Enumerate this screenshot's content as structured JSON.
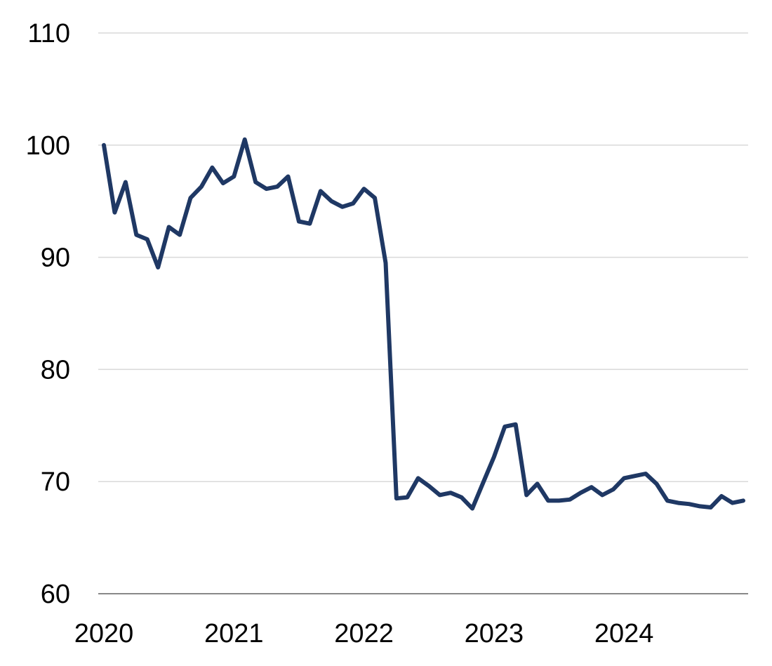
{
  "chart_data": {
    "type": "line",
    "title": "",
    "xlabel": "",
    "ylabel": "",
    "ylim": [
      60,
      110
    ],
    "xlim": [
      "2020-01",
      "2024-12"
    ],
    "yticks": [
      60,
      70,
      80,
      90,
      100,
      110
    ],
    "xticks": [
      "2020",
      "2021",
      "2022",
      "2023",
      "2024"
    ],
    "grid": "horizontal",
    "legend": "none",
    "series": [
      {
        "color": "#1f3864",
        "x": [
          "2020-01",
          "2020-02",
          "2020-03",
          "2020-04",
          "2020-05",
          "2020-06",
          "2020-07",
          "2020-08",
          "2020-09",
          "2020-10",
          "2020-11",
          "2020-12",
          "2021-01",
          "2021-02",
          "2021-03",
          "2021-04",
          "2021-05",
          "2021-06",
          "2021-07",
          "2021-08",
          "2021-09",
          "2021-10",
          "2021-11",
          "2021-12",
          "2022-01",
          "2022-02",
          "2022-03",
          "2022-04",
          "2022-05",
          "2022-06",
          "2022-07",
          "2022-08",
          "2022-09",
          "2022-10",
          "2022-11",
          "2022-12",
          "2023-01",
          "2023-02",
          "2023-03",
          "2023-04",
          "2023-05",
          "2023-06",
          "2023-07",
          "2023-08",
          "2023-09",
          "2023-10",
          "2023-11",
          "2023-12",
          "2024-01",
          "2024-02",
          "2024-03",
          "2024-04",
          "2024-05",
          "2024-06",
          "2024-07",
          "2024-08",
          "2024-09",
          "2024-10",
          "2024-11",
          "2024-12"
        ],
        "values": [
          100.0,
          94.0,
          96.7,
          92.0,
          91.6,
          89.1,
          92.7,
          92.0,
          95.3,
          96.3,
          98.0,
          96.6,
          97.2,
          100.5,
          96.7,
          96.1,
          96.3,
          97.2,
          93.2,
          93.0,
          95.9,
          95.0,
          94.5,
          94.8,
          96.1,
          95.3,
          89.5,
          68.5,
          68.6,
          70.3,
          69.6,
          68.8,
          69.0,
          68.6,
          67.6,
          69.9,
          72.2,
          74.9,
          75.1,
          68.8,
          69.8,
          68.3,
          68.3,
          68.4,
          69.0,
          69.5,
          68.8,
          69.3,
          70.3,
          70.5,
          70.7,
          69.8,
          68.3,
          68.1,
          68.0,
          67.8,
          67.7,
          68.7,
          68.1,
          68.3
        ]
      }
    ]
  }
}
